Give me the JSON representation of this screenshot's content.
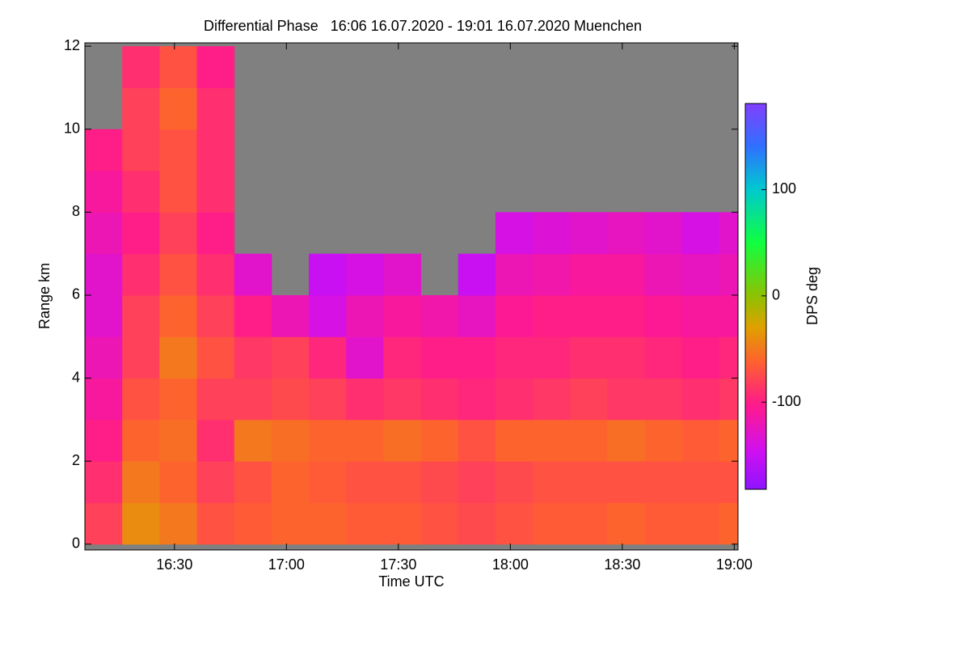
{
  "chart_data": {
    "type": "heatmap",
    "title": "Differential Phase   16:06 16.07.2020 - 19:01 16.07.2020 Muenchen",
    "x_label": "Time UTC",
    "y_label": "Range km",
    "colorbar_label": "DPS deg",
    "x_bins": [
      16.1,
      16.2667,
      16.4333,
      16.6,
      16.7667,
      16.9333,
      17.1,
      17.2667,
      17.4333,
      17.6,
      17.7667,
      17.9333,
      18.1,
      18.2667,
      18.4333,
      18.6,
      18.7667,
      18.9333,
      19.0167
    ],
    "y_bins": [
      0,
      1,
      2,
      3,
      4,
      5,
      6,
      7,
      8,
      9,
      10,
      11,
      12
    ],
    "z": [
      [
        -80,
        -40,
        -50,
        -70,
        -65,
        -60,
        -60,
        -65,
        -65,
        -70,
        -75,
        -70,
        -65,
        -65,
        -60,
        -65,
        -65,
        -60
      ],
      [
        -90,
        -50,
        -60,
        -80,
        -70,
        -60,
        -65,
        -70,
        -70,
        -75,
        -80,
        -75,
        -70,
        -70,
        -70,
        -70,
        -70,
        -70
      ],
      [
        -100,
        -60,
        -55,
        -90,
        -50,
        -55,
        -60,
        -60,
        -55,
        -60,
        -70,
        -60,
        -60,
        -60,
        -55,
        -60,
        -65,
        -60
      ],
      [
        -110,
        -70,
        -60,
        -80,
        -80,
        -75,
        -80,
        -90,
        -85,
        -90,
        -95,
        -90,
        -85,
        -80,
        -85,
        -85,
        -90,
        -85
      ],
      [
        -120,
        -80,
        -50,
        -70,
        -85,
        -80,
        -95,
        -130,
        -95,
        -100,
        -100,
        -95,
        -95,
        -90,
        -90,
        -95,
        -100,
        -95
      ],
      [
        -130,
        -80,
        -60,
        -80,
        -100,
        -120,
        -140,
        -120,
        -110,
        -115,
        -125,
        -105,
        -100,
        -100,
        -100,
        -105,
        -110,
        -110
      ],
      [
        -130,
        -90,
        -70,
        -90,
        -130,
        null,
        -150,
        -140,
        -130,
        null,
        -150,
        -120,
        -115,
        -110,
        -110,
        -120,
        -125,
        -120
      ],
      [
        -120,
        -100,
        -80,
        -100,
        null,
        null,
        null,
        null,
        null,
        null,
        null,
        -140,
        -135,
        -130,
        -125,
        -130,
        -140,
        -130
      ],
      [
        -110,
        -90,
        -70,
        -90,
        null,
        null,
        null,
        null,
        null,
        null,
        null,
        null,
        null,
        null,
        null,
        null,
        null,
        null
      ],
      [
        -100,
        -80,
        -70,
        -90,
        null,
        null,
        null,
        null,
        null,
        null,
        null,
        null,
        null,
        null,
        null,
        null,
        null,
        null
      ],
      [
        null,
        -80,
        -60,
        -90,
        null,
        null,
        null,
        null,
        null,
        null,
        null,
        null,
        null,
        null,
        null,
        null,
        null,
        null
      ],
      [
        null,
        -90,
        -70,
        -100,
        null,
        null,
        null,
        null,
        null,
        null,
        null,
        null,
        null,
        null,
        null,
        null,
        null,
        null
      ]
    ],
    "missing_color": "#808080",
    "xlim": [
      16.1,
      19.0167
    ],
    "xticks": [
      {
        "value": 16.5,
        "label": "16:30"
      },
      {
        "value": 17,
        "label": "17:00"
      },
      {
        "value": 17.5,
        "label": "17:30"
      },
      {
        "value": 18,
        "label": "18:00"
      },
      {
        "value": 18.5,
        "label": "18:30"
      },
      {
        "value": 19,
        "label": "19:00"
      }
    ],
    "ylim": [
      -0.14,
      12.08
    ],
    "yticks": [
      0,
      2,
      4,
      6,
      8,
      10,
      12
    ],
    "zlim": [
      -182,
      181
    ],
    "zticks": [
      -100,
      0,
      100
    ]
  }
}
